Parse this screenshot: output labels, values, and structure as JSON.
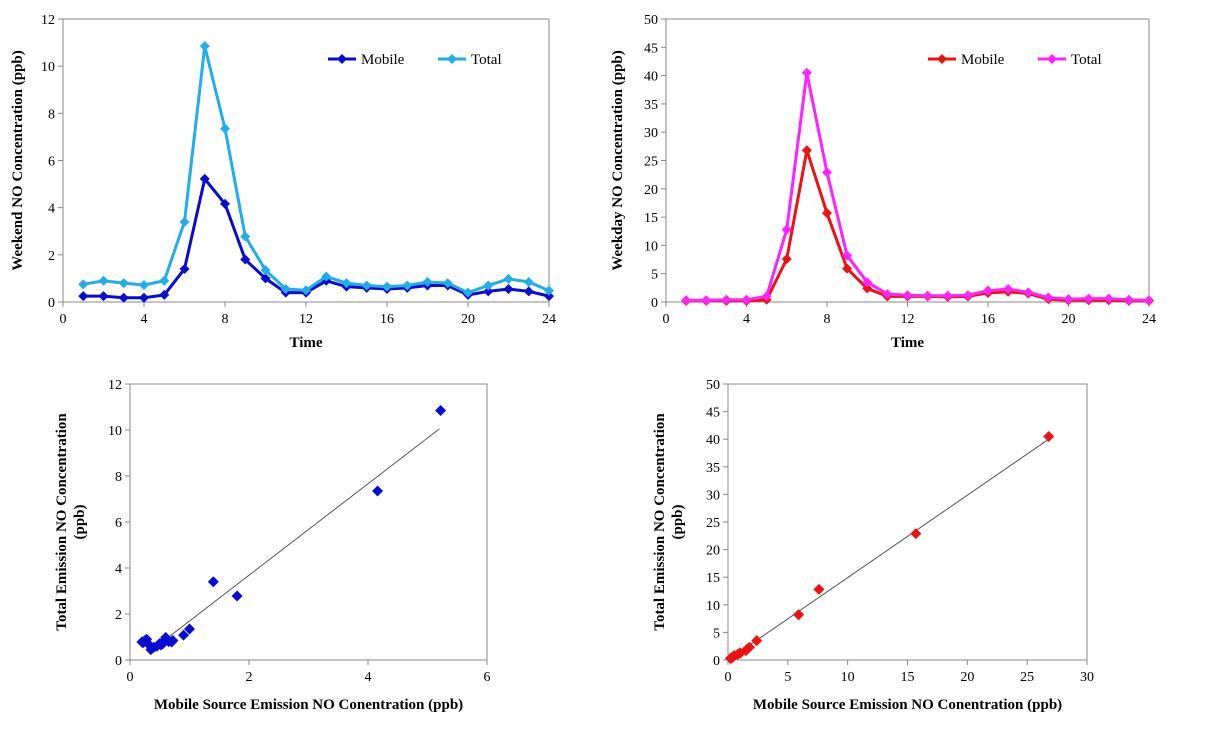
{
  "chart_data": [
    {
      "id": "weekend-line",
      "type": "line",
      "xlabel": "Time",
      "ylabel": "Weekend NO Concentration (ppb)",
      "xlim": [
        0,
        24
      ],
      "ylim": [
        0,
        12
      ],
      "xticks": [
        0,
        4,
        8,
        12,
        16,
        20,
        24
      ],
      "yticks": [
        0,
        2,
        4,
        6,
        8,
        10,
        12
      ],
      "grid": false,
      "legend_position": "top-right",
      "x": [
        1,
        2,
        3,
        4,
        5,
        6,
        7,
        8,
        9,
        10,
        11,
        12,
        13,
        14,
        15,
        16,
        17,
        18,
        19,
        20,
        21,
        22,
        23,
        24
      ],
      "series": [
        {
          "name": "Mobile",
          "color": "#0a0ad6",
          "values": [
            0.25,
            0.25,
            0.18,
            0.18,
            0.3,
            1.4,
            5.22,
            4.16,
            1.8,
            1.0,
            0.4,
            0.4,
            0.9,
            0.65,
            0.6,
            0.55,
            0.6,
            0.7,
            0.7,
            0.3,
            0.45,
            0.55,
            0.45,
            0.25
          ]
        },
        {
          "name": "Total",
          "color": "#1eaee8",
          "values": [
            0.75,
            0.9,
            0.8,
            0.72,
            0.9,
            3.4,
            10.85,
            7.35,
            2.78,
            1.35,
            0.55,
            0.5,
            1.08,
            0.8,
            0.7,
            0.65,
            0.7,
            0.85,
            0.8,
            0.4,
            0.7,
            0.98,
            0.85,
            0.48
          ]
        }
      ]
    },
    {
      "id": "weekday-line",
      "type": "line",
      "xlabel": "Time",
      "ylabel": "Weekday NO Concentration (ppb)",
      "xlim": [
        0,
        24
      ],
      "ylim": [
        0,
        50
      ],
      "xticks": [
        0,
        4,
        8,
        12,
        16,
        20,
        24
      ],
      "yticks": [
        0,
        5,
        10,
        15,
        20,
        25,
        30,
        35,
        40,
        45,
        50
      ],
      "grid": false,
      "legend_position": "top-right",
      "x": [
        1,
        2,
        3,
        4,
        5,
        6,
        7,
        8,
        9,
        10,
        11,
        12,
        13,
        14,
        15,
        16,
        17,
        18,
        19,
        20,
        21,
        22,
        23,
        24
      ],
      "series": [
        {
          "name": "Mobile",
          "color": "#ee1111",
          "values": [
            0.2,
            0.2,
            0.2,
            0.2,
            0.4,
            7.6,
            26.8,
            15.7,
            5.9,
            2.4,
            1.0,
            1.0,
            1.0,
            0.9,
            1.0,
            1.6,
            1.8,
            1.5,
            0.5,
            0.3,
            0.3,
            0.3,
            0.2,
            0.2
          ]
        },
        {
          "name": "Total",
          "color": "#ff22ff",
          "values": [
            0.3,
            0.3,
            0.4,
            0.4,
            1.0,
            12.8,
            40.5,
            22.9,
            8.2,
            3.5,
            1.4,
            1.2,
            1.1,
            1.1,
            1.2,
            2.0,
            2.3,
            1.7,
            0.8,
            0.5,
            0.6,
            0.6,
            0.4,
            0.3
          ]
        }
      ]
    },
    {
      "id": "weekend-scatter",
      "type": "scatter",
      "xlabel": "Mobile Source Emission NO Conentration (ppb)",
      "ylabel_line1": "Total Emission NO Concentration",
      "ylabel_line2": "(ppb)",
      "xlim": [
        0,
        6
      ],
      "ylim": [
        0,
        12
      ],
      "xticks": [
        0,
        2,
        4,
        6
      ],
      "yticks": [
        0,
        2,
        4,
        6,
        8,
        10,
        12
      ],
      "grid": false,
      "color": "#0a0ad6",
      "points": [
        [
          0.22,
          0.75
        ],
        [
          0.25,
          0.85
        ],
        [
          0.2,
          0.78
        ],
        [
          0.3,
          0.72
        ],
        [
          0.28,
          0.9
        ],
        [
          0.35,
          0.45
        ],
        [
          0.4,
          0.55
        ],
        [
          0.45,
          0.6
        ],
        [
          0.5,
          0.72
        ],
        [
          0.52,
          0.65
        ],
        [
          0.55,
          0.7
        ],
        [
          0.58,
          0.85
        ],
        [
          0.6,
          0.98
        ],
        [
          0.65,
          0.8
        ],
        [
          0.7,
          0.78
        ],
        [
          0.72,
          0.85
        ],
        [
          0.9,
          1.08
        ],
        [
          1.0,
          1.35
        ],
        [
          1.4,
          3.4
        ],
        [
          1.8,
          2.78
        ],
        [
          4.16,
          7.35
        ],
        [
          5.22,
          10.85
        ]
      ],
      "trendline": [
        [
          0.45,
          0.6
        ],
        [
          5.2,
          10.05
        ]
      ]
    },
    {
      "id": "weekday-scatter",
      "type": "scatter",
      "xlabel": "Mobile Source Emission NO Conentration (ppb)",
      "ylabel_line1": "Total Emission NO Concentration",
      "ylabel_line2": "(ppb)",
      "xlim": [
        0,
        30
      ],
      "ylim": [
        0,
        50
      ],
      "xticks": [
        0,
        5,
        10,
        15,
        20,
        25,
        30
      ],
      "yticks": [
        0,
        5,
        10,
        15,
        20,
        25,
        30,
        35,
        40,
        45,
        50
      ],
      "grid": false,
      "color": "#ee1111",
      "points": [
        [
          0.2,
          0.3
        ],
        [
          0.3,
          0.4
        ],
        [
          0.4,
          0.5
        ],
        [
          0.5,
          0.8
        ],
        [
          0.8,
          1.0
        ],
        [
          1.0,
          1.3
        ],
        [
          1.0,
          1.2
        ],
        [
          1.5,
          1.7
        ],
        [
          1.6,
          2.0
        ],
        [
          1.8,
          2.3
        ],
        [
          2.4,
          3.5
        ],
        [
          5.9,
          8.2
        ],
        [
          7.6,
          12.8
        ],
        [
          15.7,
          22.9
        ],
        [
          26.8,
          40.5
        ]
      ],
      "trendline": [
        [
          0.0,
          0.0
        ],
        [
          26.8,
          40.0
        ]
      ]
    }
  ]
}
